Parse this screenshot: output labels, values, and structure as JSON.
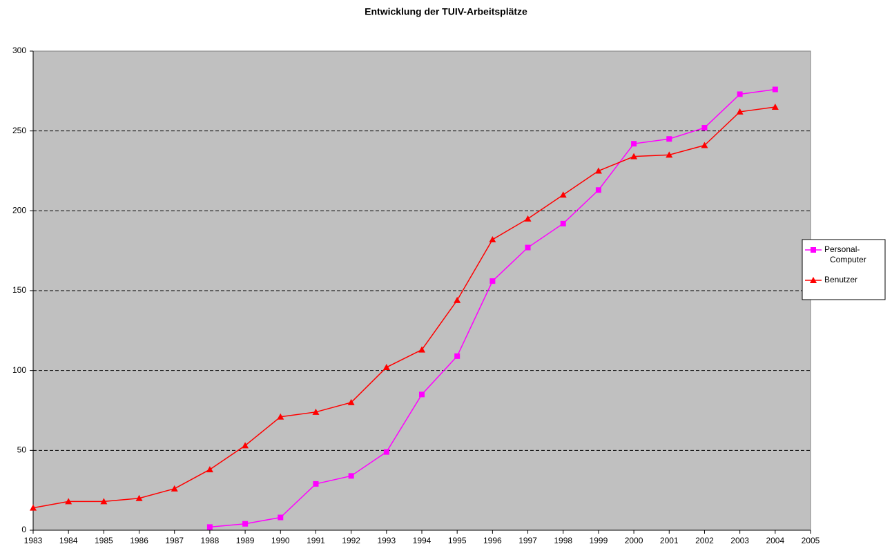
{
  "chart_data": {
    "type": "line",
    "title": "Entwicklung der TUIV-Arbeitsplätze",
    "x": [
      1983,
      1984,
      1985,
      1986,
      1987,
      1988,
      1989,
      1990,
      1991,
      1992,
      1993,
      1994,
      1995,
      1996,
      1997,
      1998,
      1999,
      2000,
      2001,
      2002,
      2003,
      2004
    ],
    "xlim": [
      1983,
      2005
    ],
    "xticks": [
      1983,
      1984,
      1985,
      1986,
      1987,
      1988,
      1989,
      1990,
      1991,
      1992,
      1993,
      1994,
      1995,
      1996,
      1997,
      1998,
      1999,
      2000,
      2001,
      2002,
      2003,
      2004,
      2005
    ],
    "ylim": [
      0,
      300
    ],
    "yticks": [
      0,
      50,
      100,
      150,
      200,
      250,
      300
    ],
    "grid": true,
    "legend": "right",
    "series": [
      {
        "name": "Personal-Computer",
        "color": "#ff00ff",
        "marker": "square",
        "values": [
          null,
          null,
          null,
          null,
          null,
          2,
          4,
          8,
          29,
          34,
          49,
          85,
          109,
          156,
          177,
          192,
          213,
          242,
          245,
          252,
          273,
          276
        ]
      },
      {
        "name": "Benutzer",
        "color": "#ff0000",
        "marker": "triangle",
        "values": [
          14,
          18,
          18,
          20,
          26,
          38,
          53,
          71,
          74,
          80,
          102,
          113,
          144,
          182,
          195,
          210,
          225,
          234,
          235,
          241,
          262,
          265
        ]
      }
    ]
  }
}
